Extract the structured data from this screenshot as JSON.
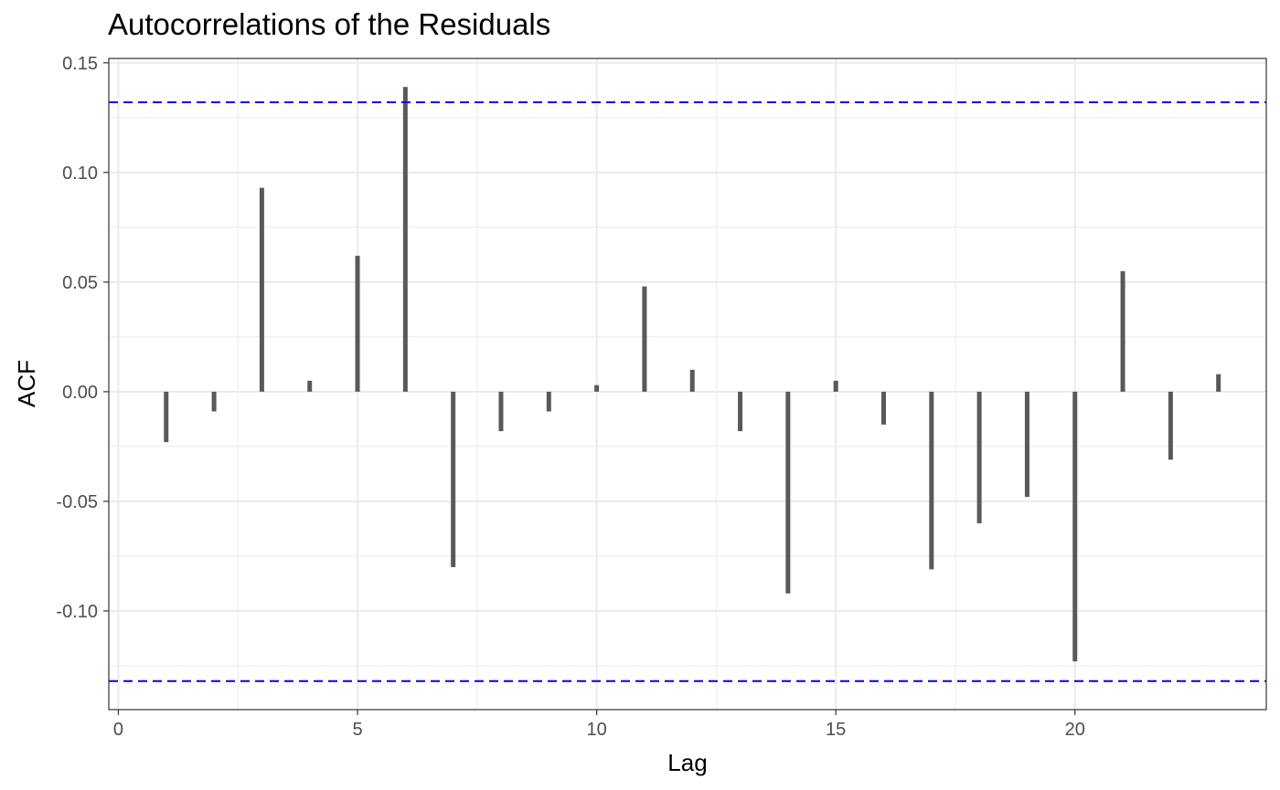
{
  "chart_data": {
    "type": "bar",
    "title": "Autocorrelations of the Residuals",
    "xlabel": "Lag",
    "ylabel": "ACF",
    "x": [
      1,
      2,
      3,
      4,
      5,
      6,
      7,
      8,
      9,
      10,
      11,
      12,
      13,
      14,
      15,
      16,
      17,
      18,
      19,
      20,
      21,
      22,
      23
    ],
    "values": [
      -0.023,
      -0.009,
      0.093,
      0.005,
      0.062,
      0.139,
      -0.08,
      -0.018,
      -0.009,
      0.003,
      0.048,
      0.01,
      -0.018,
      -0.092,
      0.005,
      -0.015,
      -0.081,
      -0.06,
      -0.048,
      -0.123,
      0.055,
      -0.031,
      0.008
    ],
    "confidence_bound": 0.132,
    "xlim": [
      -0.2,
      24.0
    ],
    "ylim": [
      -0.145,
      0.152
    ],
    "x_ticks": [
      0,
      5,
      10,
      15,
      20
    ],
    "x_tick_labels": [
      "0",
      "5",
      "10",
      "15",
      "20"
    ],
    "y_ticks": [
      -0.1,
      -0.05,
      0.0,
      0.05,
      0.1,
      0.15
    ],
    "y_tick_labels": [
      "-0.10",
      "-0.05",
      "0.00",
      "0.05",
      "0.10",
      "0.15"
    ],
    "grid": true,
    "colors": {
      "bar": "#595959",
      "bound": "#0000ff",
      "grid": "#ebebeb",
      "frame": "#333333"
    }
  }
}
